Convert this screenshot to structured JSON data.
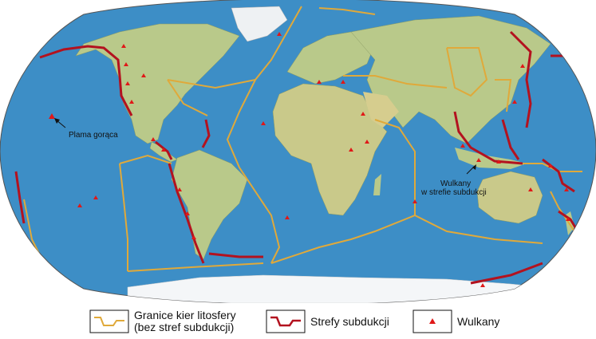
{
  "annotations": {
    "hotspot_label": "Plama gorąca",
    "subduction_volcano_label_line1": "Wulkany",
    "subduction_volcano_label_line2": "w strefie subdukcji"
  },
  "legend": {
    "boundaries_line1": "Granice kier litosfery",
    "boundaries_line2": "(bez stref subdukcji)",
    "subduction": "Strefy subdukcji",
    "volcanoes": "Wulkany"
  },
  "colors": {
    "ocean": "#3d8ec6",
    "land": "#b9c98a",
    "ice": "#f4f6f8",
    "plate_boundary": "#e0a93a",
    "subduction": "#b3121f",
    "volcano": "#e01818"
  }
}
